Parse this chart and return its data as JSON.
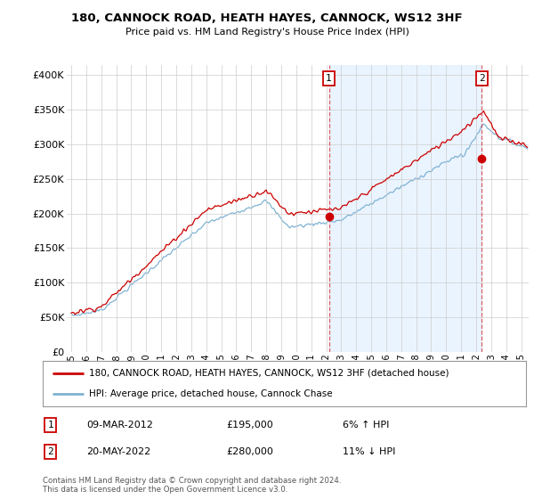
{
  "title": "180, CANNOCK ROAD, HEATH HAYES, CANNOCK, WS12 3HF",
  "subtitle": "Price paid vs. HM Land Registry's House Price Index (HPI)",
  "ylabel_ticks": [
    "£0",
    "£50K",
    "£100K",
    "£150K",
    "£200K",
    "£250K",
    "£300K",
    "£350K",
    "£400K"
  ],
  "ytick_vals": [
    0,
    50000,
    100000,
    150000,
    200000,
    250000,
    300000,
    350000,
    400000
  ],
  "ylim": [
    0,
    415000
  ],
  "sale1_price": 195000,
  "sale2_price": 280000,
  "sale1_x": 2012.18,
  "sale2_x": 2022.38,
  "sale1_date": "09-MAR-2012",
  "sale2_date": "20-MAY-2022",
  "sale1_note": "6% ↑ HPI",
  "sale2_note": "11% ↓ HPI",
  "line_color_property": "#cc0000",
  "line_color_hpi": "#7fb3d3",
  "shade_color": "#ddeeff",
  "vline_color": "#dd4444",
  "legend_label1": "180, CANNOCK ROAD, HEATH HAYES, CANNOCK, WS12 3HF (detached house)",
  "legend_label2": "HPI: Average price, detached house, Cannock Chase",
  "footnote": "Contains HM Land Registry data © Crown copyright and database right 2024.\nThis data is licensed under the Open Government Licence v3.0.",
  "background_color": "#ffffff",
  "grid_color": "#cccccc",
  "xlim_left": 1994.7,
  "xlim_right": 2025.5
}
